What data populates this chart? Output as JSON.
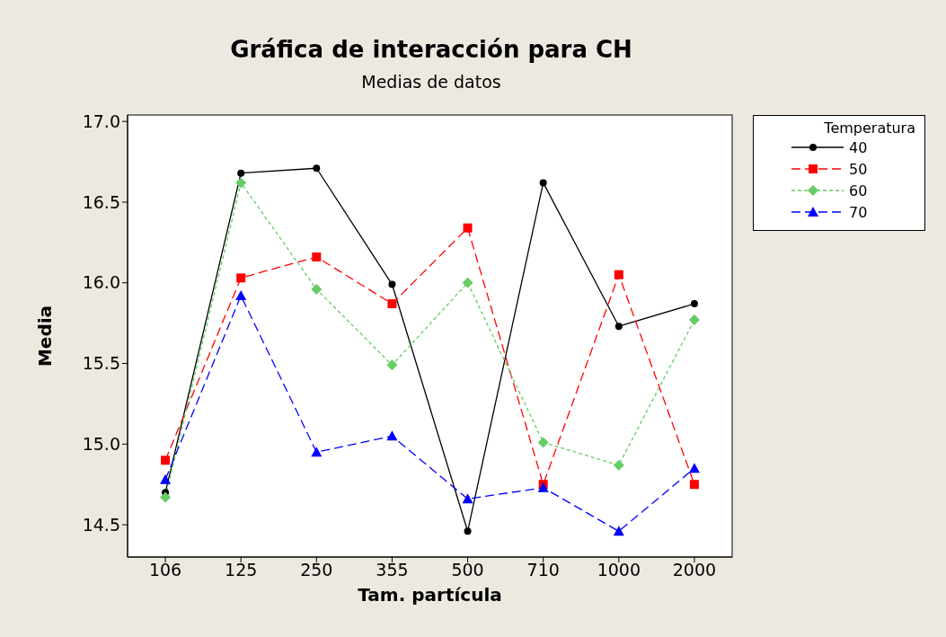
{
  "chart_data": {
    "type": "line",
    "title": "Gráfica de interacción para CH",
    "subtitle": "Medias de datos",
    "xlabel": "Tam. partícula",
    "ylabel": "Media",
    "legend_title": "Temperatura",
    "categories": [
      "106",
      "125",
      "250",
      "355",
      "500",
      "710",
      "1000",
      "2000"
    ],
    "series": [
      {
        "name": "40",
        "color": "#000000",
        "marker": "circle",
        "line_style": "solid",
        "values": [
          14.7,
          16.68,
          16.71,
          15.99,
          14.46,
          16.62,
          15.73,
          15.87
        ]
      },
      {
        "name": "50",
        "color": "#ff0000",
        "marker": "square",
        "line_style": "dashed",
        "values": [
          14.9,
          16.03,
          16.16,
          15.87,
          16.34,
          14.75,
          16.05,
          14.75
        ]
      },
      {
        "name": "60",
        "color": "#66cc66",
        "marker": "diamond",
        "line_style": "dotted",
        "values": [
          14.67,
          16.62,
          15.96,
          15.49,
          16.0,
          15.01,
          14.87,
          15.77
        ]
      },
      {
        "name": "70",
        "color": "#0000ff",
        "marker": "triangle",
        "line_style": "dashed",
        "values": [
          14.78,
          15.92,
          14.95,
          15.05,
          14.66,
          14.73,
          14.46,
          14.85
        ]
      }
    ],
    "ylim": [
      14.3,
      17.04
    ],
    "yticks": [
      {
        "value": 14.5,
        "label": "14.5"
      },
      {
        "value": 15,
        "label": "15.0"
      },
      {
        "value": 15.5,
        "label": "15.5"
      },
      {
        "value": 16,
        "label": "16.0"
      },
      {
        "value": 16.5,
        "label": "16.5"
      },
      {
        "value": 17,
        "label": "17.0"
      }
    ],
    "grid": false,
    "legend": "top right"
  }
}
